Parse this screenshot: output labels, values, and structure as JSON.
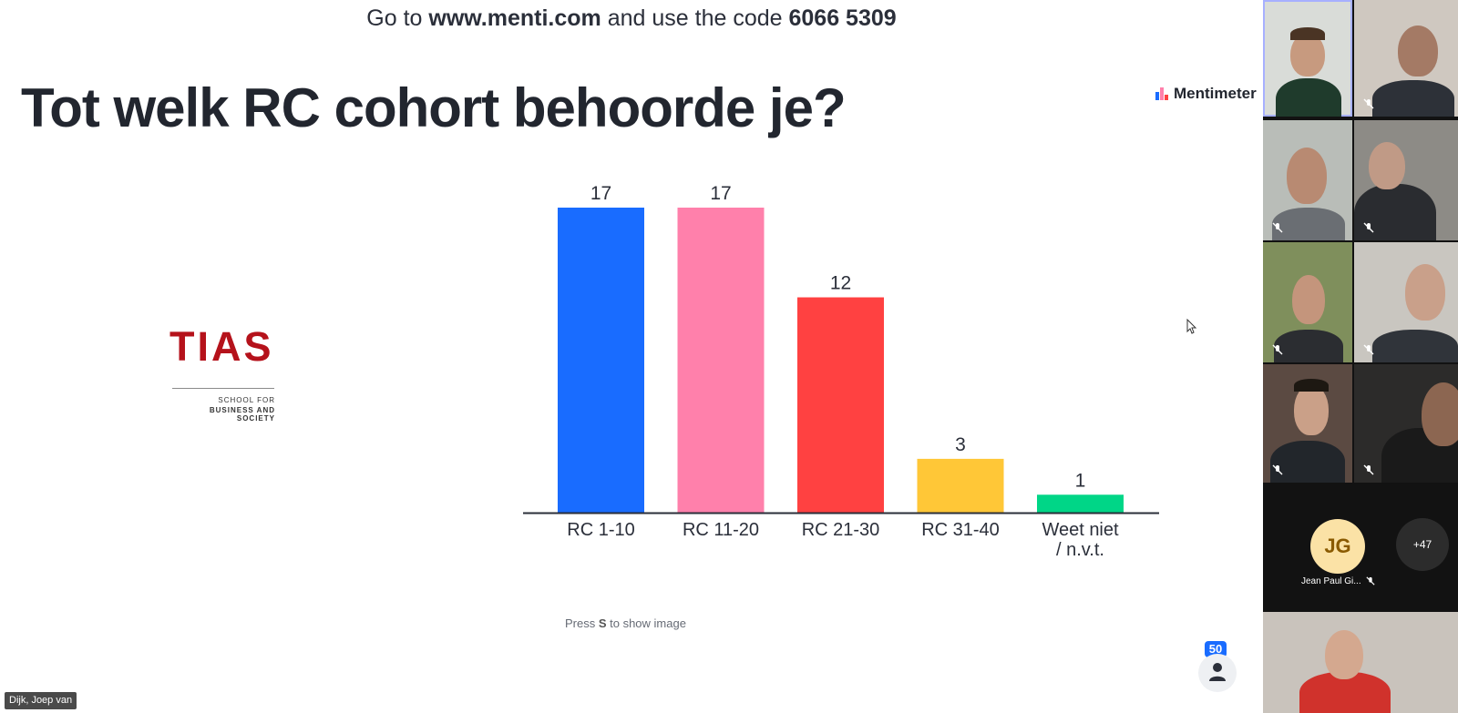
{
  "slide": {
    "join_prefix": "Go to ",
    "join_url": "www.menti.com",
    "join_middle": " and use the code ",
    "join_code": "6066 5309",
    "title": "Tot welk RC cohort behoorde je?",
    "brand": "Mentimeter",
    "logo_word": "TIAS",
    "logo_sub1": "SCHOOL FOR",
    "logo_sub2": "BUSINESS AND SOCIETY",
    "hint_pre": "Press ",
    "hint_key": "S",
    "hint_post": " to show image",
    "audience_count": "50"
  },
  "chart_data": {
    "type": "bar",
    "title": "",
    "xlabel": "",
    "ylabel": "",
    "categories": [
      "RC 1-10",
      "RC 11-20",
      "RC 21-30",
      "RC 31-40",
      "Weet niet / n.v.t."
    ],
    "category_lines": [
      [
        "RC 1-10"
      ],
      [
        "RC 11-20"
      ],
      [
        "RC 21-30"
      ],
      [
        "RC 31-40"
      ],
      [
        "Weet niet",
        "/ n.v.t."
      ]
    ],
    "values": [
      17,
      17,
      12,
      3,
      1
    ],
    "colors": [
      "#196cff",
      "#ff80ab",
      "#ff4141",
      "#ffc737",
      "#00d687"
    ],
    "ylim": [
      0,
      17
    ],
    "grid": false,
    "legend": "none"
  },
  "meeting": {
    "speaker_label": "Dijk, Joep van",
    "avatar_initials": "JG",
    "avatar_name": "Jean Paul Gi...",
    "more_count": "+47"
  }
}
